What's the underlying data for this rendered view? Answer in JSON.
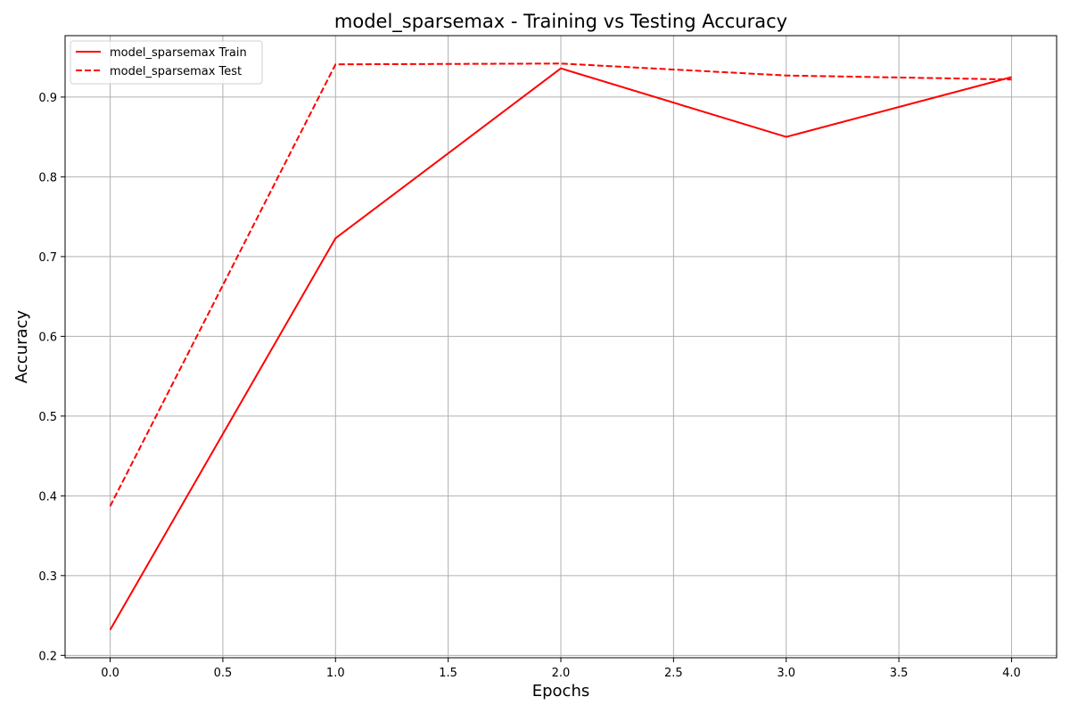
{
  "chart_data": {
    "type": "line",
    "title": "model_sparsemax - Training vs Testing Accuracy",
    "xlabel": "Epochs",
    "ylabel": "Accuracy",
    "x": [
      0,
      1,
      2,
      3,
      4
    ],
    "series": [
      {
        "name": "model_sparsemax Train",
        "values": [
          0.232,
          0.723,
          0.936,
          0.85,
          0.925
        ],
        "color": "#ff0000",
        "style": "solid"
      },
      {
        "name": "model_sparsemax Test",
        "values": [
          0.387,
          0.941,
          0.942,
          0.927,
          0.922
        ],
        "color": "#ff0000",
        "style": "dashed"
      }
    ],
    "xlim": [
      -0.2,
      4.2
    ],
    "ylim": [
      0.197,
      0.977
    ],
    "xticks": [
      "0.0",
      "0.5",
      "1.0",
      "1.5",
      "2.0",
      "2.5",
      "3.0",
      "3.5",
      "4.0"
    ],
    "yticks": [
      "0.2",
      "0.3",
      "0.4",
      "0.5",
      "0.6",
      "0.7",
      "0.8",
      "0.9"
    ],
    "grid": true,
    "legend_position": "top-left"
  }
}
